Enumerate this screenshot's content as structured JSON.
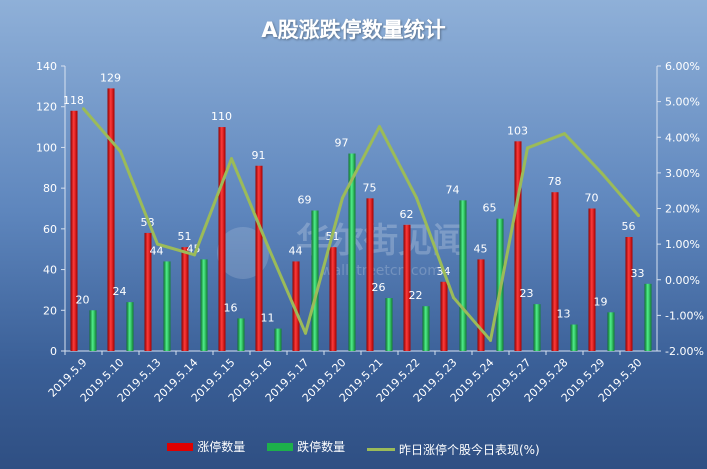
{
  "chart_data": {
    "type": "bar",
    "title": "A股涨跌停数量统计",
    "categories": [
      "2019.5.9",
      "2019.5.10",
      "2019.5.13",
      "2019.5.14",
      "2019.5.15",
      "2019.5.16",
      "2019.5.17",
      "2019.5.20",
      "2019.5.21",
      "2019.5.22",
      "2019.5.23",
      "2019.5.24",
      "2019.5.27",
      "2019.5.28",
      "2019.5.29",
      "2019.5.30"
    ],
    "series": [
      {
        "name": "涨停数量",
        "type": "bar",
        "axis": "left",
        "color": "#e00000",
        "values": [
          118,
          129,
          58,
          51,
          110,
          91,
          44,
          51,
          75,
          62,
          34,
          45,
          103,
          78,
          70,
          56
        ]
      },
      {
        "name": "跌停数量",
        "type": "bar",
        "axis": "left",
        "color": "#1db04b",
        "values": [
          20,
          24,
          44,
          45,
          16,
          11,
          69,
          97,
          26,
          22,
          74,
          65,
          23,
          13,
          19,
          33
        ]
      },
      {
        "name": "昨日涨停个股今日表现(%)",
        "type": "line",
        "axis": "right",
        "color": "#9bbb59",
        "values": [
          4.8,
          3.6,
          1.0,
          0.7,
          3.4,
          0.9,
          -1.5,
          2.3,
          4.3,
          2.3,
          -0.5,
          -1.7,
          3.7,
          4.1,
          3.0,
          1.8
        ]
      }
    ],
    "y_left": {
      "min": 0,
      "max": 140,
      "step": 20,
      "ticks": [
        "0",
        "20",
        "40",
        "60",
        "80",
        "100",
        "120",
        "140"
      ]
    },
    "y_right": {
      "min": -2,
      "max": 6,
      "step": 1,
      "ticks": [
        "-2.00%",
        "-1.00%",
        "0.00%",
        "1.00%",
        "2.00%",
        "3.00%",
        "4.00%",
        "5.00%",
        "6.00%"
      ]
    },
    "legend_position": "bottom",
    "grid": false
  },
  "watermark": {
    "line1": "华尔街见闻",
    "line2": "wallstreetcn.com"
  }
}
